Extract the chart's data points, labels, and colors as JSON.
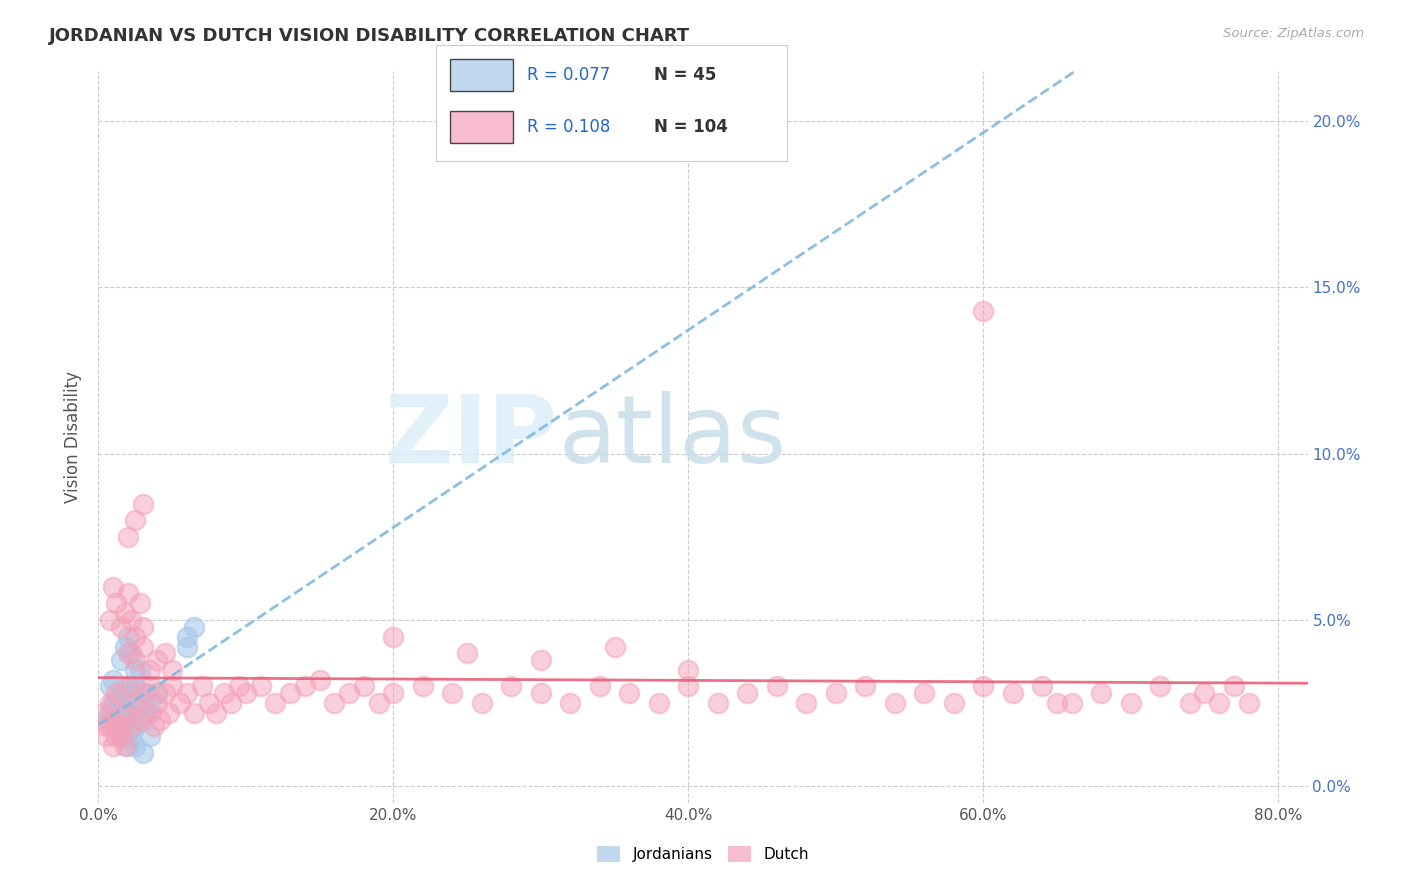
{
  "title": "JORDANIAN VS DUTCH VISION DISABILITY CORRELATION CHART",
  "source_text": "Source: ZipAtlas.com",
  "ylabel": "Vision Disability",
  "watermark_zip": "ZIP",
  "watermark_atlas": "atlas",
  "legend_r1": "0.077",
  "legend_n1": "45",
  "legend_r2": "0.108",
  "legend_n2": "104",
  "xlim": [
    0.0,
    0.82
  ],
  "ylim": [
    -0.005,
    0.215
  ],
  "blue_color": "#a8c8e8",
  "pink_color": "#f4a0b8",
  "trendline_blue_color": "#7eb8e0",
  "trendline_pink_color": "#e8607a",
  "background": "#ffffff",
  "grid_color": "#cccccc",
  "title_color": "#333333",
  "blue_scatter_x": [
    0.005,
    0.008,
    0.01,
    0.012,
    0.015,
    0.018,
    0.02,
    0.022,
    0.025,
    0.028,
    0.03,
    0.032,
    0.035,
    0.01,
    0.012,
    0.015,
    0.018,
    0.02,
    0.022,
    0.025,
    0.028,
    0.03,
    0.015,
    0.02,
    0.025,
    0.03,
    0.035,
    0.01,
    0.012,
    0.008,
    0.015,
    0.018,
    0.02,
    0.022,
    0.025,
    0.018,
    0.02,
    0.022,
    0.025,
    0.028,
    0.035,
    0.04,
    0.06,
    0.06,
    0.065
  ],
  "blue_scatter_y": [
    0.02,
    0.022,
    0.025,
    0.018,
    0.028,
    0.015,
    0.022,
    0.03,
    0.018,
    0.025,
    0.02,
    0.028,
    0.022,
    0.032,
    0.018,
    0.025,
    0.02,
    0.028,
    0.022,
    0.03,
    0.035,
    0.025,
    0.015,
    0.012,
    0.018,
    0.01,
    0.015,
    0.02,
    0.025,
    0.03,
    0.038,
    0.042,
    0.045,
    0.04,
    0.035,
    0.018,
    0.022,
    0.015,
    0.012,
    0.02,
    0.025,
    0.028,
    0.045,
    0.042,
    0.048
  ],
  "pink_scatter_x": [
    0.003,
    0.005,
    0.008,
    0.01,
    0.012,
    0.015,
    0.018,
    0.02,
    0.022,
    0.025,
    0.028,
    0.03,
    0.032,
    0.035,
    0.038,
    0.04,
    0.042,
    0.045,
    0.048,
    0.05,
    0.055,
    0.06,
    0.065,
    0.07,
    0.075,
    0.08,
    0.085,
    0.09,
    0.095,
    0.1,
    0.11,
    0.12,
    0.13,
    0.14,
    0.15,
    0.16,
    0.17,
    0.18,
    0.19,
    0.2,
    0.22,
    0.24,
    0.26,
    0.28,
    0.3,
    0.32,
    0.34,
    0.36,
    0.38,
    0.4,
    0.42,
    0.44,
    0.46,
    0.48,
    0.5,
    0.52,
    0.54,
    0.56,
    0.58,
    0.6,
    0.008,
    0.01,
    0.012,
    0.015,
    0.018,
    0.02,
    0.022,
    0.025,
    0.028,
    0.03,
    0.02,
    0.025,
    0.03,
    0.035,
    0.04,
    0.045,
    0.05,
    0.02,
    0.025,
    0.03,
    0.2,
    0.25,
    0.3,
    0.35,
    0.4,
    0.6,
    0.65,
    0.62,
    0.64,
    0.66,
    0.68,
    0.7,
    0.72,
    0.74,
    0.75,
    0.76,
    0.77,
    0.78,
    0.005,
    0.008,
    0.01,
    0.012,
    0.015,
    0.018
  ],
  "pink_scatter_y": [
    0.022,
    0.018,
    0.025,
    0.02,
    0.028,
    0.015,
    0.022,
    0.03,
    0.018,
    0.025,
    0.02,
    0.028,
    0.022,
    0.03,
    0.018,
    0.025,
    0.02,
    0.028,
    0.022,
    0.03,
    0.025,
    0.028,
    0.022,
    0.03,
    0.025,
    0.022,
    0.028,
    0.025,
    0.03,
    0.028,
    0.03,
    0.025,
    0.028,
    0.03,
    0.032,
    0.025,
    0.028,
    0.03,
    0.025,
    0.028,
    0.03,
    0.028,
    0.025,
    0.03,
    0.028,
    0.025,
    0.03,
    0.028,
    0.025,
    0.03,
    0.025,
    0.028,
    0.03,
    0.025,
    0.028,
    0.03,
    0.025,
    0.028,
    0.025,
    0.03,
    0.05,
    0.06,
    0.055,
    0.048,
    0.052,
    0.058,
    0.05,
    0.045,
    0.055,
    0.048,
    0.04,
    0.038,
    0.042,
    0.035,
    0.038,
    0.04,
    0.035,
    0.075,
    0.08,
    0.085,
    0.045,
    0.04,
    0.038,
    0.042,
    0.035,
    0.143,
    0.025,
    0.028,
    0.03,
    0.025,
    0.028,
    0.025,
    0.03,
    0.025,
    0.028,
    0.025,
    0.03,
    0.025,
    0.015,
    0.018,
    0.012,
    0.015,
    0.018,
    0.012
  ]
}
